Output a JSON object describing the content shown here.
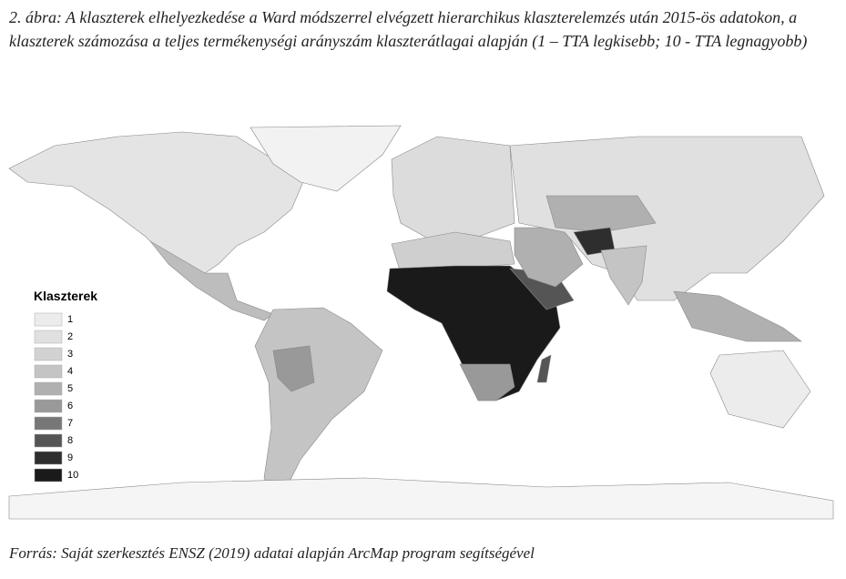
{
  "caption": "2. ábra: A klaszterek elhelyezkedése a Ward módszerrel elvégzett hierarchikus klaszterelemzés után 2015-ös adatokon, a klaszterek számozása a teljes termékenységi arányszám klaszterátlagai alapján (1 – TTA legkisebb; 10 - TTA legnagyobb)",
  "legend": {
    "title": "Klaszterek",
    "items": [
      {
        "label": "1",
        "color": "#ececec"
      },
      {
        "label": "2",
        "color": "#e0e0e0"
      },
      {
        "label": "3",
        "color": "#d2d2d2"
      },
      {
        "label": "4",
        "color": "#c4c4c4"
      },
      {
        "label": "5",
        "color": "#b0b0b0"
      },
      {
        "label": "6",
        "color": "#999999"
      },
      {
        "label": "7",
        "color": "#777777"
      },
      {
        "label": "8",
        "color": "#555555"
      },
      {
        "label": "9",
        "color": "#2e2e2e"
      },
      {
        "label": "10",
        "color": "#1a1a1a"
      }
    ]
  },
  "source": "Forrás: Saját szerkesztés ENSZ (2019) adatai alapján ArcMap program segítségével"
}
